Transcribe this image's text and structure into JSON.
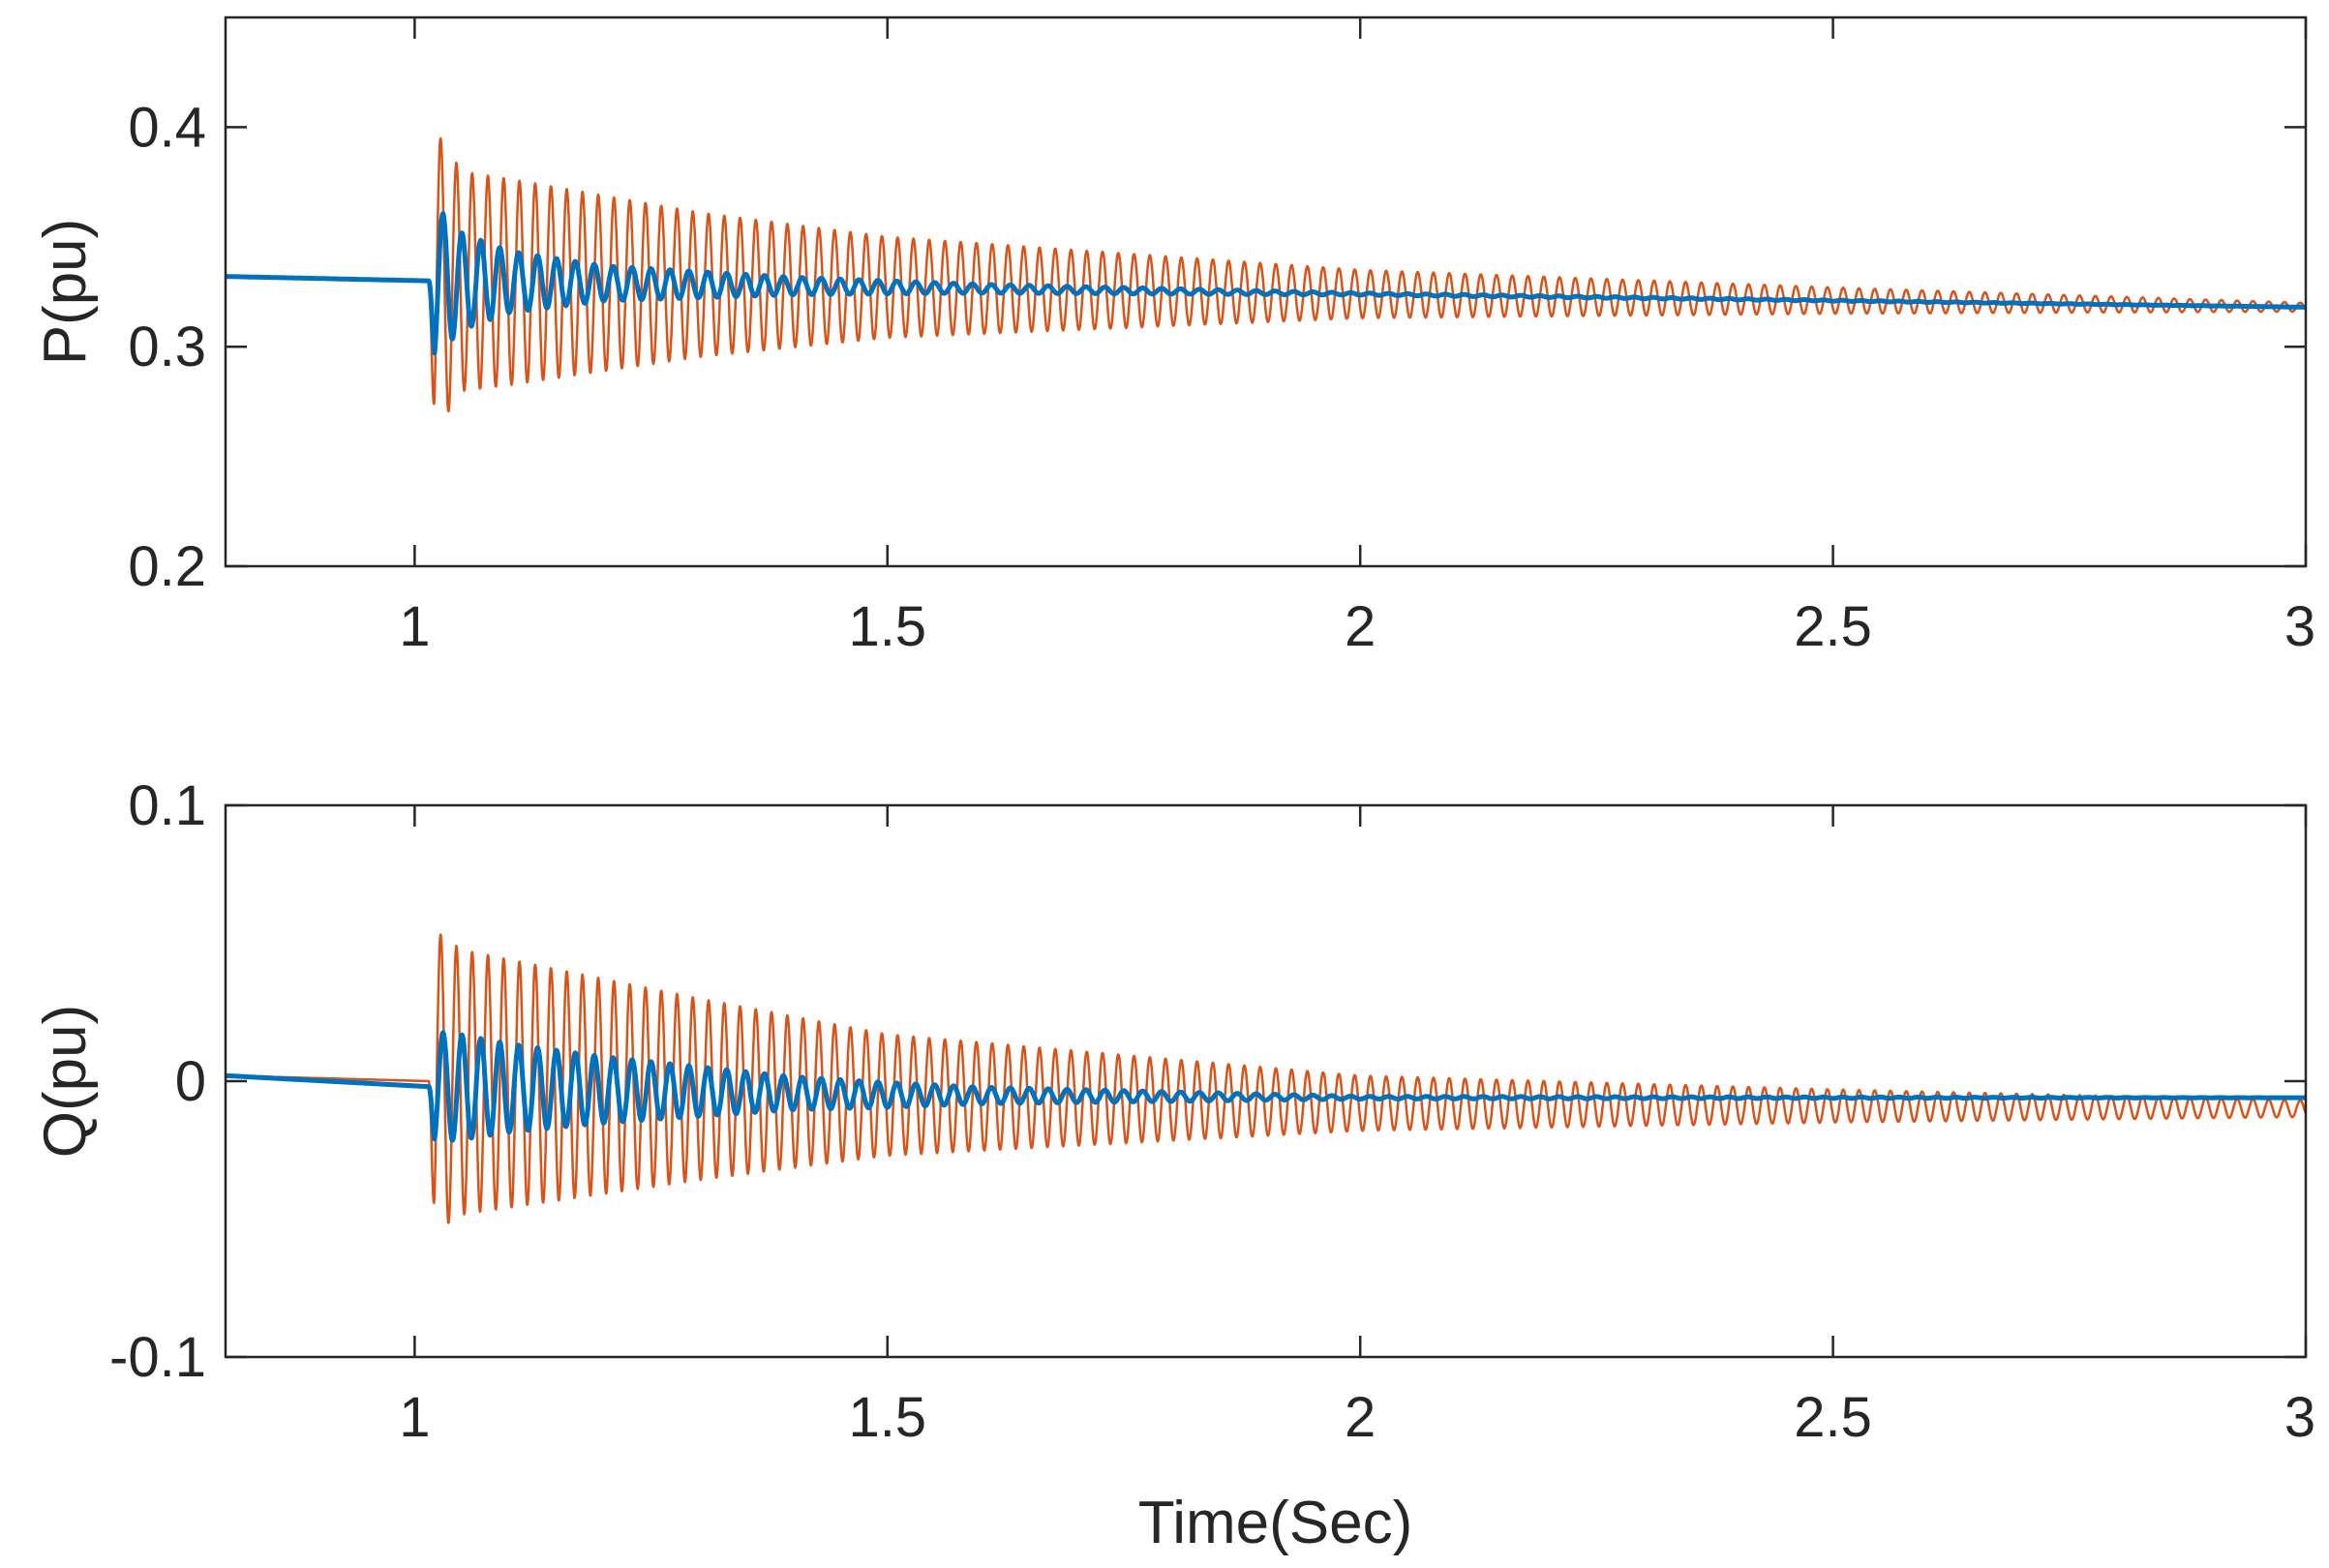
{
  "chart_data": [
    {
      "type": "line",
      "title": "",
      "xlabel": "",
      "ylabel": "P(pu)",
      "xlim": [
        0.8,
        3
      ],
      "ylim": [
        0.2,
        0.45
      ],
      "xticks": [
        1,
        1.5,
        2,
        2.5,
        3
      ],
      "xtick_labels": [
        "1",
        "1.5",
        "2",
        "2.5",
        "3"
      ],
      "yticks": [
        0.2,
        0.3,
        0.4
      ],
      "ytick_labels": [
        "0.2",
        "0.3",
        "0.4"
      ],
      "grid": false,
      "series": [
        {
          "name": "orange",
          "color": "#D95319",
          "pre_fault_value": 0.332,
          "disturbance_time": 1.015,
          "baseline": [
            [
              1.015,
              0.33
            ],
            [
              2.0,
              0.324
            ],
            [
              3.0,
              0.318
            ]
          ],
          "oscillation_frequency_hz": 60,
          "amplitude_envelope": [
            [
              1.02,
              0.07
            ],
            [
              1.05,
              0.05
            ],
            [
              1.1,
              0.047
            ],
            [
              1.3,
              0.033
            ],
            [
              1.5,
              0.023
            ],
            [
              2.0,
              0.011
            ],
            [
              2.5,
              0.006
            ],
            [
              3.0,
              0.002
            ]
          ]
        },
        {
          "name": "blue",
          "color": "#0072BD",
          "pre_fault_value": 0.332,
          "disturbance_time": 1.015,
          "baseline": [
            [
              1.015,
              0.33
            ],
            [
              2.0,
              0.324
            ],
            [
              3.0,
              0.318
            ]
          ],
          "oscillation_frequency_hz": 50,
          "amplitude_envelope": [
            [
              1.02,
              0.035
            ],
            [
              1.05,
              0.022
            ],
            [
              1.1,
              0.014
            ],
            [
              1.2,
              0.008
            ],
            [
              1.4,
              0.004
            ],
            [
              1.6,
              0.002
            ],
            [
              2.0,
              0.0005
            ],
            [
              3.0,
              0.0
            ]
          ]
        }
      ]
    },
    {
      "type": "line",
      "title": "",
      "xlabel": "Time(Sec)",
      "ylabel": "Q(pu)",
      "xlim": [
        0.8,
        3
      ],
      "ylim": [
        -0.1,
        0.1
      ],
      "xticks": [
        1,
        1.5,
        2,
        2.5,
        3
      ],
      "xtick_labels": [
        "1",
        "1.5",
        "2",
        "2.5",
        "3"
      ],
      "yticks": [
        -0.1,
        0,
        0.1
      ],
      "ytick_labels": [
        "-0.1",
        "0",
        "0.1"
      ],
      "grid": false,
      "series": [
        {
          "name": "orange",
          "color": "#D95319",
          "pre_fault_value": 0.002,
          "disturbance_time": 1.015,
          "baseline": [
            [
              1.015,
              0.0
            ],
            [
              1.5,
              -0.005
            ],
            [
              2.0,
              -0.008
            ],
            [
              3.0,
              -0.01
            ]
          ],
          "oscillation_frequency_hz": 60,
          "amplitude_envelope": [
            [
              1.02,
              0.055
            ],
            [
              1.05,
              0.048
            ],
            [
              1.1,
              0.045
            ],
            [
              1.3,
              0.033
            ],
            [
              1.5,
              0.022
            ],
            [
              2.0,
              0.01
            ],
            [
              2.5,
              0.006
            ],
            [
              3.0,
              0.003
            ]
          ]
        },
        {
          "name": "blue",
          "color": "#0072BD",
          "pre_fault_value": 0.002,
          "disturbance_time": 1.015,
          "baseline": [
            [
              1.015,
              -0.002
            ],
            [
              1.5,
              -0.005
            ],
            [
              2.0,
              -0.006
            ],
            [
              3.0,
              -0.006
            ]
          ],
          "oscillation_frequency_hz": 50,
          "amplitude_envelope": [
            [
              1.02,
              0.02
            ],
            [
              1.05,
              0.019
            ],
            [
              1.1,
              0.016
            ],
            [
              1.2,
              0.012
            ],
            [
              1.4,
              0.006
            ],
            [
              1.6,
              0.003
            ],
            [
              2.0,
              0.0005
            ],
            [
              3.0,
              0.0
            ]
          ]
        }
      ]
    }
  ]
}
